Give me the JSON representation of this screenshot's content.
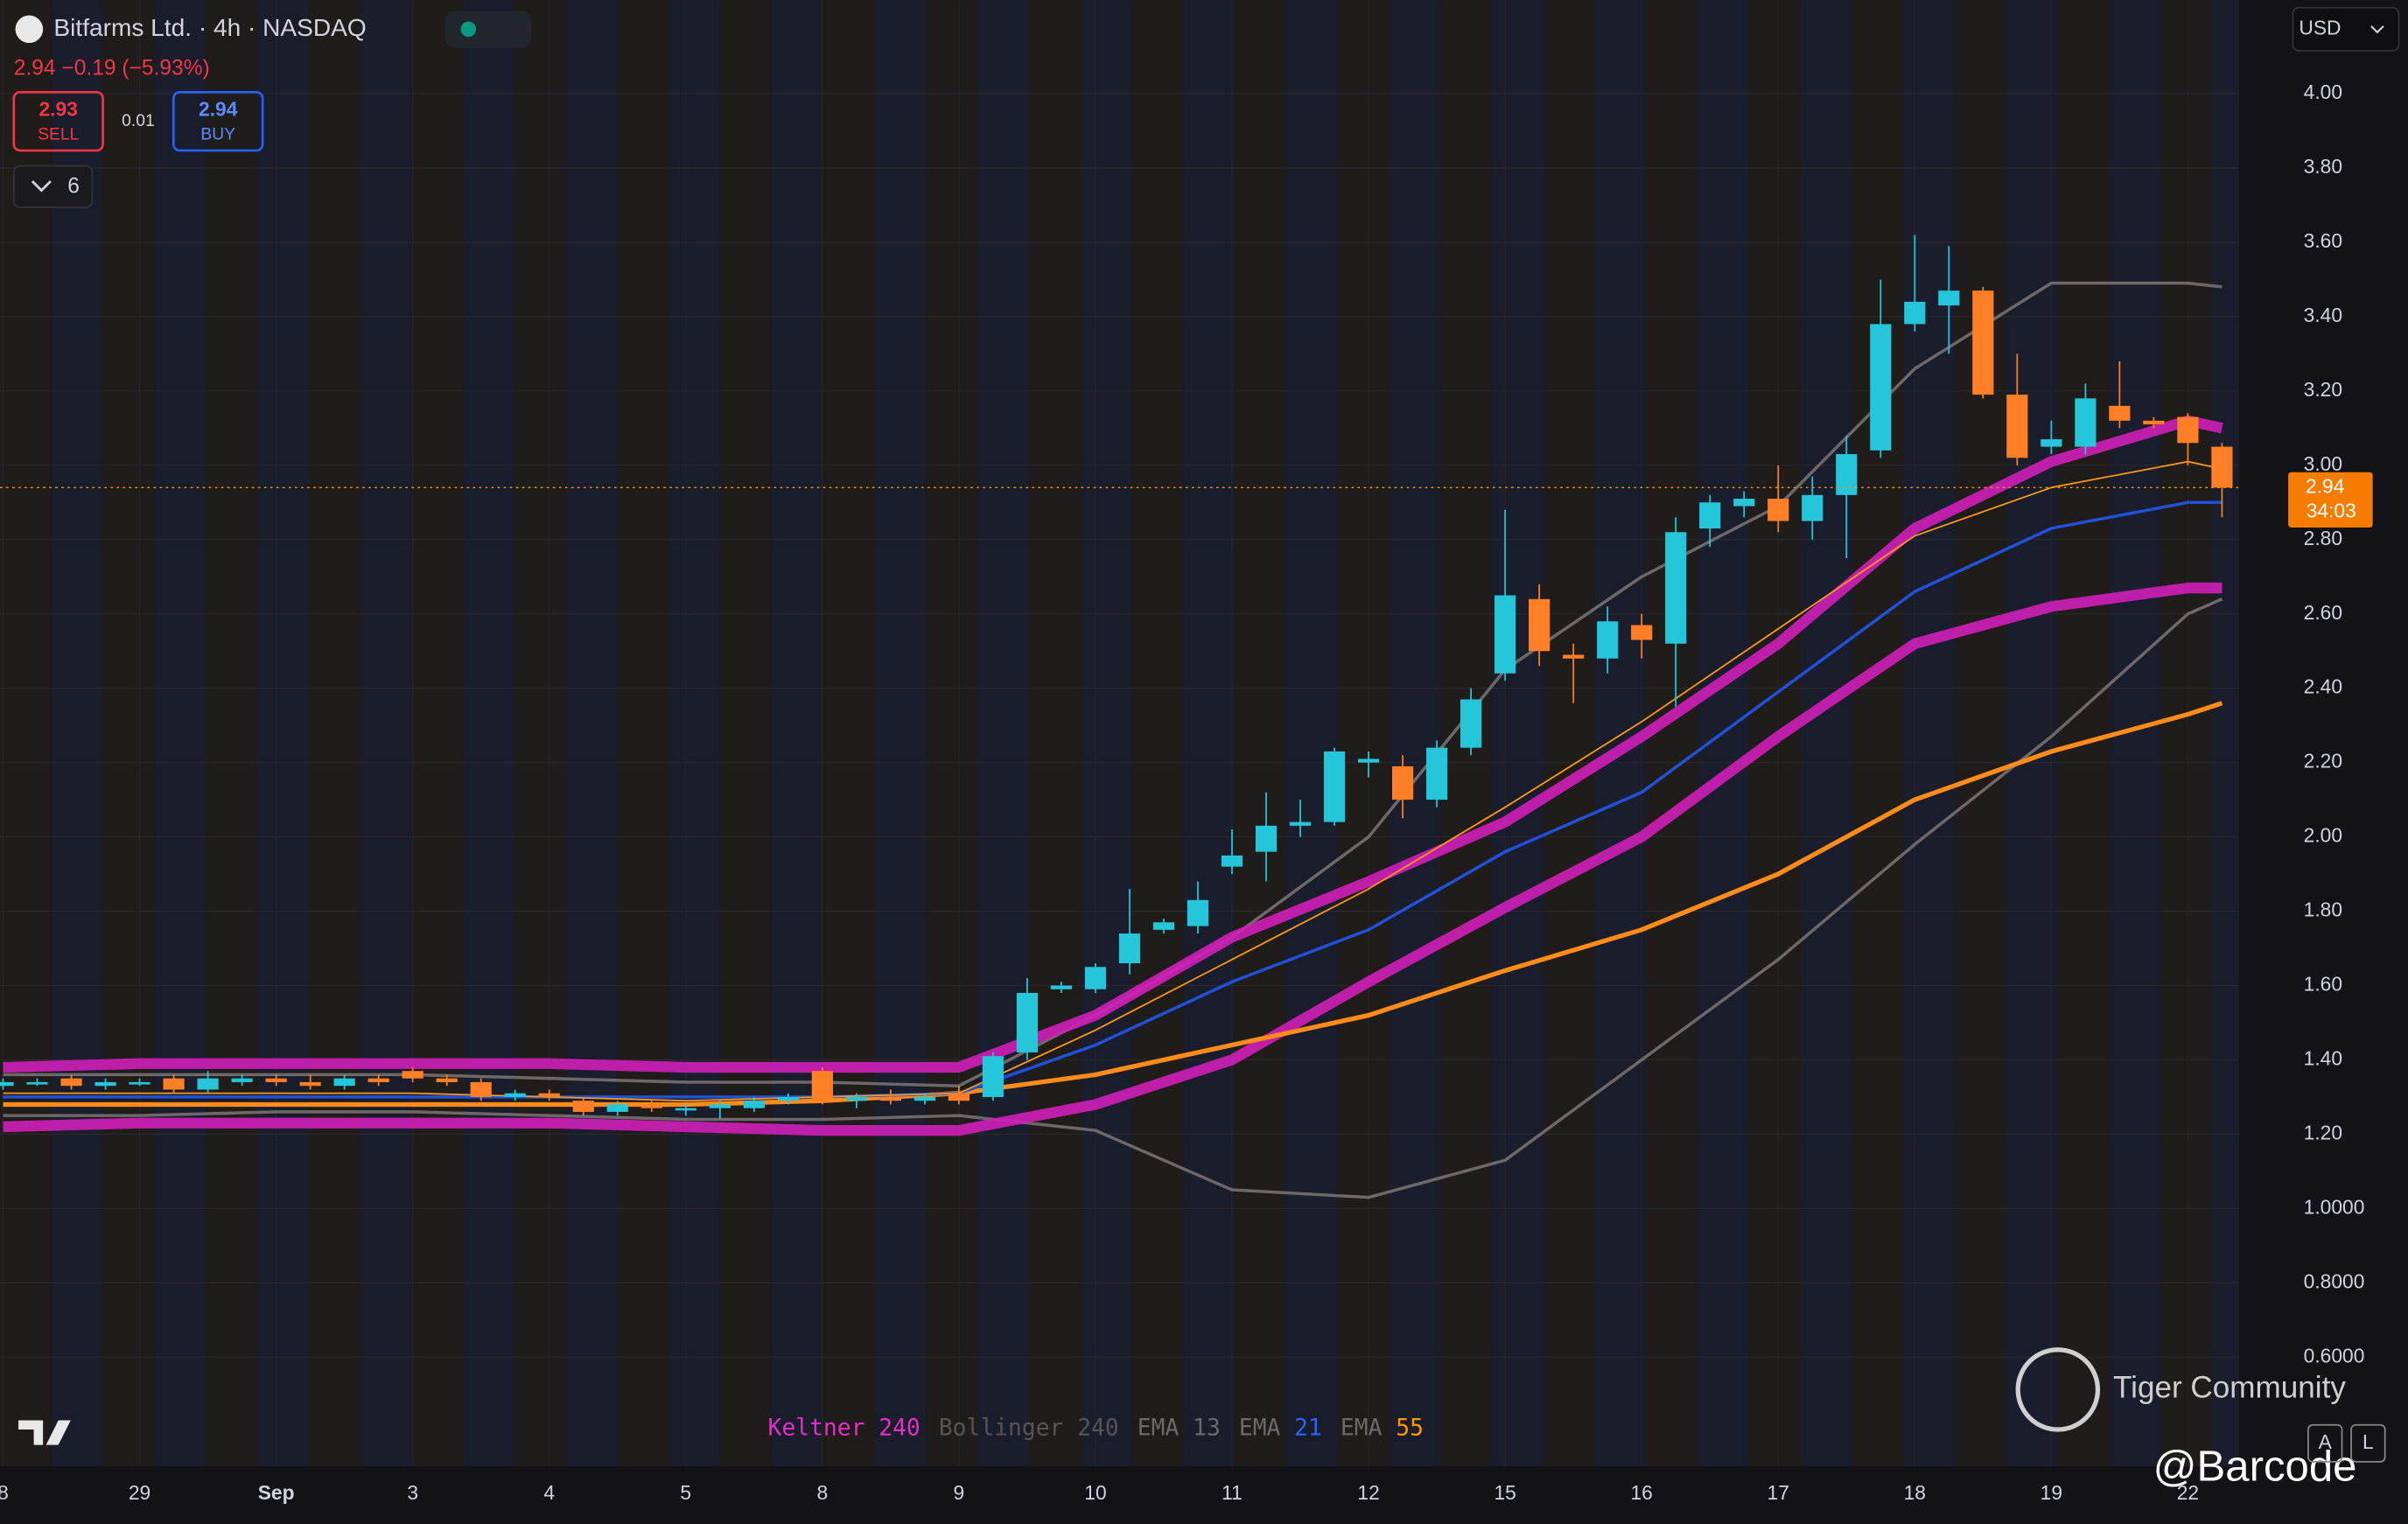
{
  "header": {
    "title": "Bitfarms Ltd. · 4h · NASDAQ",
    "change": "2.94 −0.19 (−5.93%)",
    "sell_price": "2.93",
    "sell_label": "SELL",
    "spread": "0.01",
    "buy_price": "2.94",
    "buy_label": "BUY",
    "indicator_count": "6",
    "currency": "USD"
  },
  "watermark": {
    "brand": "Tiger Community",
    "handle": "@Barcode"
  },
  "controls": {
    "auto": "A",
    "log": "L"
  },
  "chart_data": {
    "type": "candlestick",
    "up_color": "#26c6da",
    "down_color": "#ff7f27",
    "open": [
      1.33,
      1.34,
      1.35,
      1.33,
      1.34,
      1.35,
      1.32,
      1.34,
      1.35,
      1.34,
      1.33,
      1.35,
      1.37,
      1.35,
      1.34,
      1.3,
      1.31,
      1.29,
      1.26,
      1.28,
      1.27,
      1.27,
      1.27,
      1.29,
      1.37,
      1.29,
      1.3,
      1.29,
      1.31,
      1.3,
      1.42,
      1.59,
      1.59,
      1.66,
      1.75,
      1.76,
      1.92,
      1.96,
      2.03,
      2.04,
      2.2,
      2.19,
      2.1,
      2.24,
      2.44,
      2.64,
      2.49,
      2.48,
      2.57,
      2.52,
      2.83,
      2.89,
      2.91,
      2.85,
      2.92,
      3.04,
      3.38,
      3.43,
      3.47,
      3.19,
      3.05,
      3.05,
      3.16,
      3.12,
      3.13,
      3.05
    ],
    "high": [
      1.35,
      1.35,
      1.36,
      1.35,
      1.35,
      1.36,
      1.37,
      1.36,
      1.36,
      1.36,
      1.36,
      1.36,
      1.38,
      1.36,
      1.35,
      1.32,
      1.32,
      1.3,
      1.29,
      1.29,
      1.28,
      1.29,
      1.3,
      1.31,
      1.38,
      1.31,
      1.32,
      1.31,
      1.33,
      1.42,
      1.62,
      1.61,
      1.66,
      1.86,
      1.78,
      1.88,
      2.02,
      2.12,
      2.1,
      2.24,
      2.23,
      2.22,
      2.26,
      2.4,
      2.88,
      2.68,
      2.52,
      2.62,
      2.6,
      2.86,
      2.92,
      2.93,
      3.0,
      2.97,
      3.08,
      3.5,
      3.62,
      3.59,
      3.48,
      3.3,
      3.12,
      3.22,
      3.28,
      3.13,
      3.14,
      3.06
    ],
    "low": [
      1.32,
      1.33,
      1.32,
      1.32,
      1.33,
      1.31,
      1.31,
      1.33,
      1.33,
      1.32,
      1.32,
      1.33,
      1.34,
      1.33,
      1.29,
      1.29,
      1.29,
      1.25,
      1.25,
      1.26,
      1.25,
      1.24,
      1.26,
      1.28,
      1.28,
      1.27,
      1.28,
      1.28,
      1.28,
      1.29,
      1.4,
      1.58,
      1.58,
      1.63,
      1.74,
      1.74,
      1.9,
      1.88,
      2.0,
      2.03,
      2.16,
      2.05,
      2.08,
      2.22,
      2.42,
      2.46,
      2.36,
      2.44,
      2.48,
      2.35,
      2.78,
      2.86,
      2.82,
      2.8,
      2.75,
      3.02,
      3.36,
      3.3,
      3.18,
      3.0,
      3.03,
      3.03,
      3.1,
      3.1,
      3.0,
      2.86
    ],
    "close": [
      1.34,
      1.34,
      1.33,
      1.34,
      1.34,
      1.32,
      1.35,
      1.35,
      1.34,
      1.33,
      1.35,
      1.34,
      1.35,
      1.34,
      1.3,
      1.31,
      1.3,
      1.26,
      1.28,
      1.27,
      1.27,
      1.28,
      1.29,
      1.3,
      1.29,
      1.3,
      1.29,
      1.3,
      1.29,
      1.41,
      1.58,
      1.6,
      1.65,
      1.74,
      1.77,
      1.83,
      1.95,
      2.03,
      2.04,
      2.23,
      2.21,
      2.1,
      2.24,
      2.37,
      2.65,
      2.5,
      2.48,
      2.58,
      2.53,
      2.82,
      2.9,
      2.91,
      2.85,
      2.92,
      3.03,
      3.38,
      3.44,
      3.47,
      3.19,
      3.02,
      3.07,
      3.18,
      3.12,
      3.11,
      3.06,
      2.94
    ],
    "overlays": [
      {
        "color": "#6e6868",
        "width": 2,
        "x": [
          0,
          4,
          8,
          12,
          16,
          20,
          24,
          28,
          32,
          36,
          40,
          44,
          48,
          52,
          56,
          60,
          64,
          65
        ],
        "values": [
          1.36,
          1.36,
          1.36,
          1.36,
          1.35,
          1.34,
          1.34,
          1.33,
          1.52,
          1.73,
          2.0,
          2.45,
          2.7,
          2.89,
          3.26,
          3.49,
          3.49,
          3.48
        ]
      },
      {
        "color": "#6e6868",
        "width": 2,
        "x": [
          0,
          4,
          8,
          12,
          16,
          20,
          24,
          28,
          32,
          36,
          40,
          44,
          48,
          52,
          56,
          60,
          64,
          65
        ],
        "values": [
          1.25,
          1.25,
          1.26,
          1.26,
          1.25,
          1.24,
          1.24,
          1.25,
          1.21,
          1.05,
          1.03,
          1.13,
          1.4,
          1.67,
          1.98,
          2.27,
          2.6,
          2.64
        ]
      },
      {
        "color": "#d020b8",
        "width": 7,
        "x": [
          0,
          4,
          8,
          12,
          16,
          20,
          24,
          28,
          32,
          36,
          40,
          44,
          48,
          52,
          56,
          60,
          64,
          65
        ],
        "values": [
          1.38,
          1.39,
          1.39,
          1.39,
          1.39,
          1.38,
          1.38,
          1.38,
          1.52,
          1.73,
          1.88,
          2.04,
          2.27,
          2.52,
          2.83,
          3.01,
          3.12,
          3.1
        ]
      },
      {
        "color": "#d020b8",
        "width": 7,
        "x": [
          0,
          4,
          8,
          12,
          16,
          20,
          24,
          28,
          32,
          36,
          40,
          44,
          48,
          52,
          56,
          60,
          64,
          65
        ],
        "values": [
          1.22,
          1.23,
          1.23,
          1.23,
          1.23,
          1.22,
          1.21,
          1.21,
          1.28,
          1.4,
          1.61,
          1.81,
          2.0,
          2.27,
          2.52,
          2.62,
          2.67,
          2.67
        ]
      },
      {
        "color": "#ff8c1a",
        "width": 3,
        "x": [
          0,
          4,
          8,
          12,
          16,
          20,
          24,
          28,
          32,
          36,
          40,
          44,
          48,
          52,
          56,
          60,
          64,
          65
        ],
        "values": [
          1.28,
          1.28,
          1.28,
          1.28,
          1.28,
          1.28,
          1.29,
          1.31,
          1.36,
          1.44,
          1.52,
          1.64,
          1.75,
          1.9,
          2.1,
          2.23,
          2.33,
          2.36
        ]
      },
      {
        "color": "#2151d8",
        "width": 2,
        "x": [
          0,
          4,
          8,
          12,
          16,
          20,
          24,
          28,
          32,
          36,
          40,
          44,
          48,
          52,
          56,
          60,
          64,
          65
        ],
        "values": [
          1.3,
          1.3,
          1.3,
          1.3,
          1.3,
          1.3,
          1.3,
          1.31,
          1.44,
          1.61,
          1.75,
          1.96,
          2.12,
          2.39,
          2.66,
          2.83,
          2.9,
          2.9
        ]
      },
      {
        "color": "#ff9a1a",
        "width": 1,
        "x": [
          0,
          4,
          8,
          12,
          16,
          20,
          24,
          28,
          32,
          36,
          40,
          44,
          48,
          52,
          56,
          60,
          64,
          65
        ],
        "values": [
          1.31,
          1.31,
          1.31,
          1.31,
          1.3,
          1.29,
          1.3,
          1.31,
          1.48,
          1.67,
          1.86,
          2.08,
          2.31,
          2.56,
          2.81,
          2.94,
          3.01,
          2.99
        ]
      }
    ],
    "indicators": [
      {
        "name": "Keltner",
        "param": "240",
        "name_color": "#e030c8",
        "param_color": "#e030c8"
      },
      {
        "name": "Bollinger",
        "param": "240",
        "name_color": "#555",
        "param_color": "#555"
      },
      {
        "name": "EMA",
        "param": "13",
        "name_color": "#6a6a6a",
        "param_color": "#6a6a6a"
      },
      {
        "name": "EMA",
        "param": "21",
        "name_color": "#6a6a6a",
        "param_color": "#2962ff"
      },
      {
        "name": "EMA",
        "param": "55",
        "name_color": "#6a6a6a",
        "param_color": "#ff9800"
      }
    ],
    "last_price": {
      "value": 2.94,
      "label": "2.94",
      "countdown": "34:03"
    },
    "xlim": [
      -0.09,
      65.5
    ],
    "xticks": [
      {
        "value": 0,
        "label": "8"
      },
      {
        "value": 4,
        "label": "29"
      },
      {
        "value": 8,
        "label": "Sep"
      },
      {
        "value": 12,
        "label": "3"
      },
      {
        "value": 16,
        "label": "4"
      },
      {
        "value": 20,
        "label": "5"
      },
      {
        "value": 24,
        "label": "8"
      },
      {
        "value": 28,
        "label": "9"
      },
      {
        "value": 32,
        "label": "10"
      },
      {
        "value": 36,
        "label": "11"
      },
      {
        "value": 40,
        "label": "12"
      },
      {
        "value": 44,
        "label": "15"
      },
      {
        "value": 48,
        "label": "16"
      },
      {
        "value": 52,
        "label": "17"
      },
      {
        "value": 56,
        "label": "18"
      },
      {
        "value": 60,
        "label": "19"
      },
      {
        "value": 64,
        "label": "22"
      }
    ],
    "ylim": [
      0.306,
      4.252
    ],
    "yticks": [
      {
        "value": 0.6,
        "label": "0.6000"
      },
      {
        "value": 0.8,
        "label": "0.8000"
      },
      {
        "value": 1.0,
        "label": "1.0000"
      },
      {
        "value": 1.2,
        "label": "1.20"
      },
      {
        "value": 1.4,
        "label": "1.40"
      },
      {
        "value": 1.6,
        "label": "1.60"
      },
      {
        "value": 1.8,
        "label": "1.80"
      },
      {
        "value": 2.0,
        "label": "2.00"
      },
      {
        "value": 2.2,
        "label": "2.20"
      },
      {
        "value": 2.4,
        "label": "2.40"
      },
      {
        "value": 2.6,
        "label": "2.60"
      },
      {
        "value": 2.8,
        "label": "2.80"
      },
      {
        "value": 3.0,
        "label": "3.00"
      },
      {
        "value": 3.2,
        "label": "3.20"
      },
      {
        "value": 3.4,
        "label": "3.40"
      },
      {
        "value": 3.6,
        "label": "3.60"
      },
      {
        "value": 3.8,
        "label": "3.80"
      },
      {
        "value": 4.0,
        "label": "4.00"
      }
    ],
    "grid": true
  }
}
